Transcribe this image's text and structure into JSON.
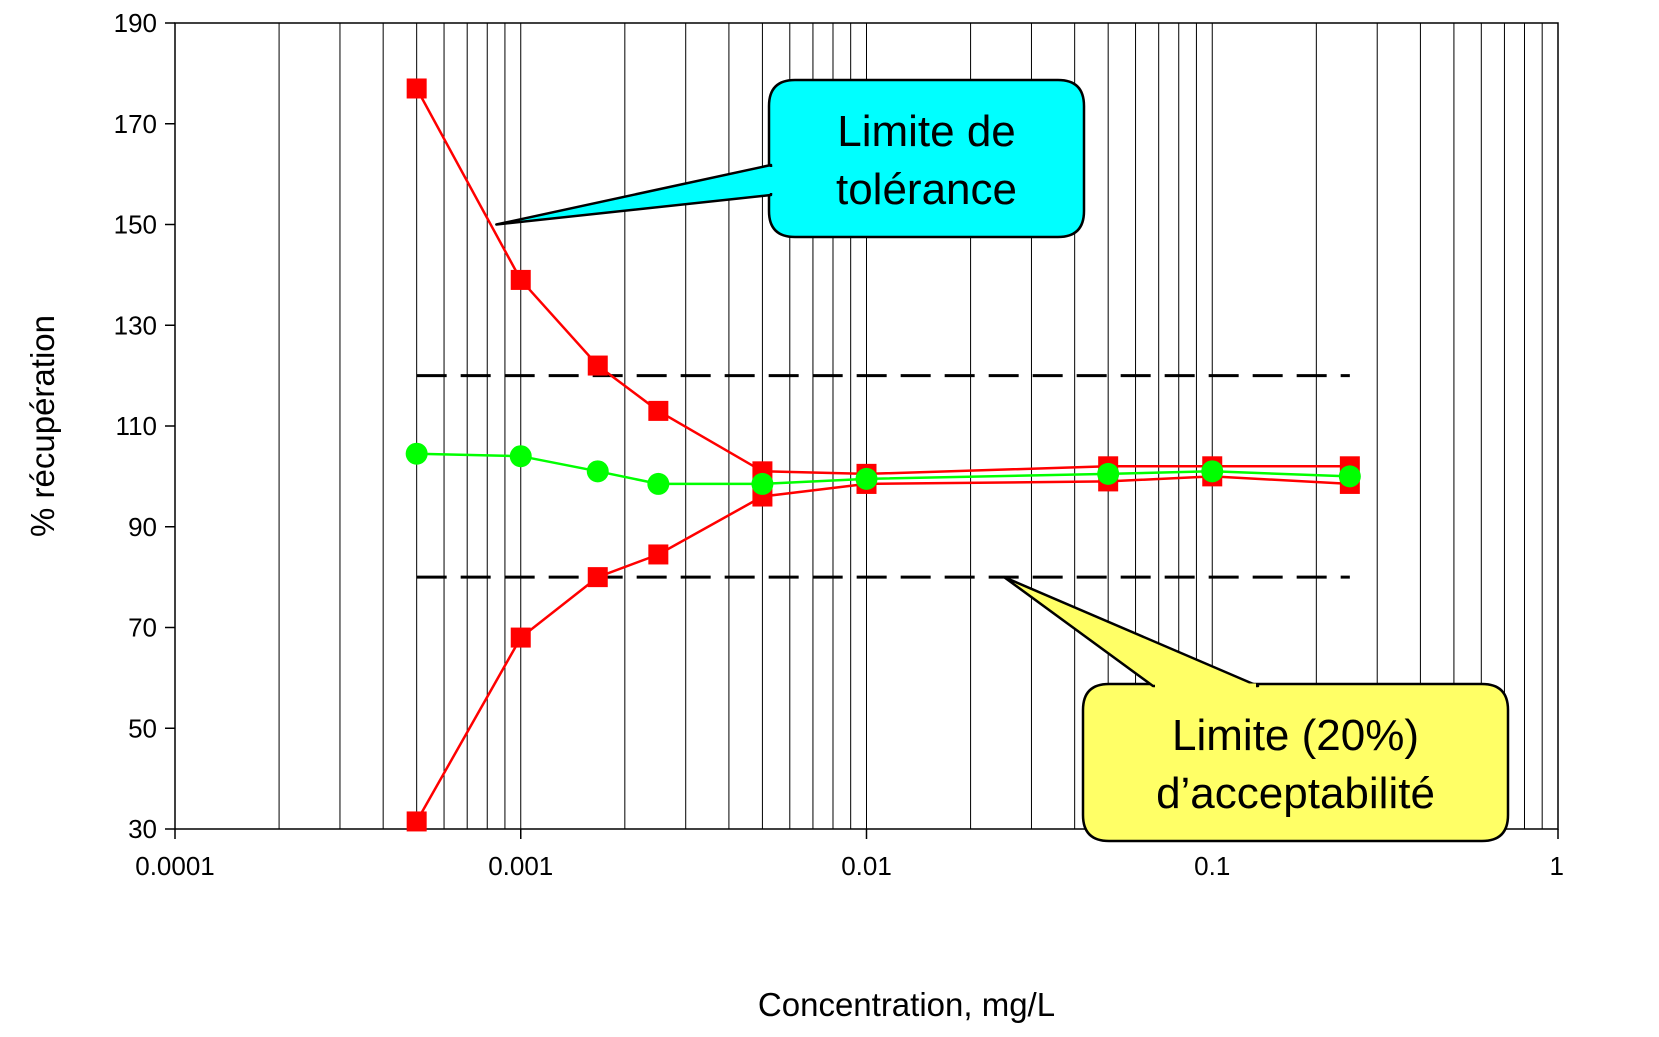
{
  "chart_data": {
    "type": "line",
    "title": "",
    "xlabel": "Concentration, mg/L",
    "ylabel": "% récupération",
    "xscale": "log",
    "xlim": [
      0.0001,
      1
    ],
    "ylim": [
      30,
      190
    ],
    "x_ticks": [
      {
        "value": 0.0001,
        "label": "0.0001"
      },
      {
        "value": 0.001,
        "label": "0.001"
      },
      {
        "value": 0.01,
        "label": "0.01"
      },
      {
        "value": 0.1,
        "label": "0.1"
      },
      {
        "value": 1,
        "label": "1"
      }
    ],
    "y_ticks": [
      30,
      50,
      70,
      90,
      110,
      130,
      150,
      170,
      190
    ],
    "grid": "vertical log gridlines (major and minor)",
    "legend": "none",
    "series": [
      {
        "color": "#ff0000",
        "marker": "square",
        "x": [
          0.0005,
          0.001,
          0.00167,
          0.0025,
          0.005,
          0.01,
          0.05,
          0.1,
          0.25
        ],
        "y": [
          177,
          139,
          122,
          113,
          101,
          100.5,
          102,
          102,
          102
        ]
      },
      {
        "color": "#ff0000",
        "marker": "square",
        "x": [
          0.0005,
          0.001,
          0.00167,
          0.0025,
          0.005,
          0.01,
          0.05,
          0.1,
          0.25
        ],
        "y": [
          31.5,
          68,
          80,
          84.5,
          96,
          98.5,
          99,
          100,
          98.5
        ]
      },
      {
        "color": "#00ff00",
        "marker": "circle",
        "x": [
          0.0005,
          0.001,
          0.00167,
          0.0025,
          0.005,
          0.01,
          0.05,
          0.1,
          0.25
        ],
        "y": [
          104.5,
          104,
          101,
          98.5,
          98.5,
          99.5,
          100.5,
          101,
          100
        ]
      }
    ],
    "reference_lines": [
      {
        "y": 120,
        "x_range": [
          0.0005,
          0.25
        ],
        "style": "dashed",
        "color": "#000000"
      },
      {
        "y": 80,
        "x_range": [
          0.0005,
          0.25
        ],
        "style": "dashed",
        "color": "#000000"
      }
    ],
    "annotations": [
      {
        "lines": [
          "Limite de",
          "tolérance"
        ],
        "fill": "#00ffff",
        "pointer": {
          "x": 0.00085,
          "y": 150
        }
      },
      {
        "lines": [
          "Limite (20%)",
          "d’acceptabilité"
        ],
        "fill": "#ffff66",
        "pointer": {
          "x": 0.025,
          "y": 80
        }
      }
    ]
  }
}
